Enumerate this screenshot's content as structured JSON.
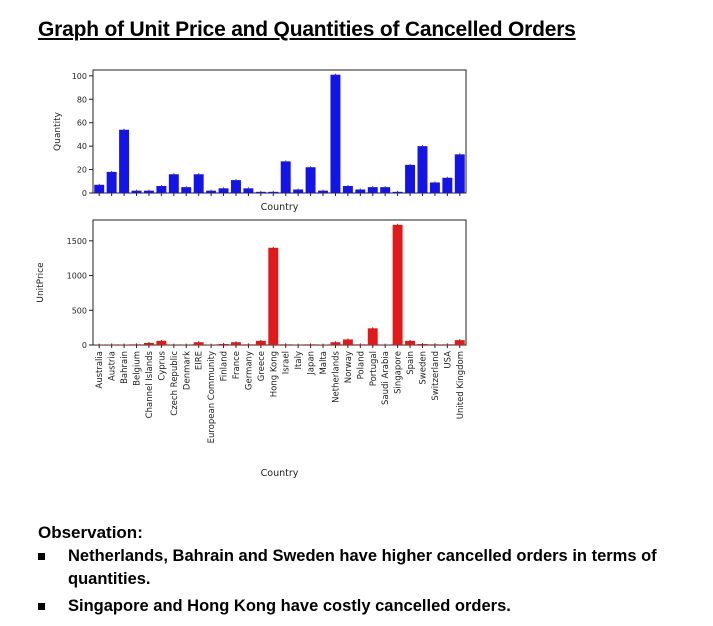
{
  "title": "Graph of Unit Price and Quantities of Cancelled Orders",
  "chart_data": [
    {
      "type": "bar",
      "color": "#1414e6",
      "ylabel": "Quantity",
      "xlabel": "Country",
      "ylim": [
        0,
        105
      ],
      "yticks": [
        0,
        20,
        40,
        60,
        80,
        100
      ],
      "categories": [
        "Australia",
        "Austria",
        "Bahrain",
        "Belgium",
        "Channel Islands",
        "Cyprus",
        "Czech Republic",
        "Denmark",
        "EIRE",
        "European Community",
        "Finland",
        "France",
        "Germany",
        "Greece",
        "Hong Kong",
        "Israel",
        "Italy",
        "Japan",
        "Malta",
        "Netherlands",
        "Norway",
        "Poland",
        "Portugal",
        "Saudi Arabia",
        "Singapore",
        "Spain",
        "Sweden",
        "Switzerland",
        "USA",
        "United Kingdom"
      ],
      "values": [
        7,
        18,
        54,
        2,
        2,
        6,
        16,
        5,
        16,
        2,
        4,
        11,
        4,
        1,
        1,
        27,
        3,
        22,
        2,
        101,
        6,
        3,
        5,
        5,
        1,
        24,
        40,
        9,
        13,
        33
      ],
      "show_tick_labels": false
    },
    {
      "type": "bar",
      "color": "#e01a1a",
      "ylabel": "UnitPrice",
      "xlabel": "Country",
      "ylim": [
        0,
        1800
      ],
      "yticks": [
        0,
        500,
        1000,
        1500
      ],
      "categories": [
        "Australia",
        "Austria",
        "Bahrain",
        "Belgium",
        "Channel Islands",
        "Cyprus",
        "Czech Republic",
        "Denmark",
        "EIRE",
        "European Community",
        "Finland",
        "France",
        "Germany",
        "Greece",
        "Hong Kong",
        "Israel",
        "Italy",
        "Japan",
        "Malta",
        "Netherlands",
        "Norway",
        "Poland",
        "Portugal",
        "Saudi Arabia",
        "Singapore",
        "Spain",
        "Sweden",
        "Switzerland",
        "USA",
        "United Kingdom"
      ],
      "values": [
        5,
        8,
        6,
        10,
        30,
        60,
        4,
        5,
        40,
        5,
        15,
        40,
        10,
        60,
        1400,
        10,
        5,
        10,
        5,
        40,
        80,
        10,
        240,
        5,
        1730,
        60,
        15,
        10,
        10,
        70
      ],
      "show_tick_labels": true
    }
  ],
  "observation": {
    "heading": "Observation:",
    "items": [
      "Netherlands, Bahrain and Sweden have higher cancelled orders in terms of quantities.",
      "Singapore and Hong Kong have costly cancelled orders."
    ]
  }
}
